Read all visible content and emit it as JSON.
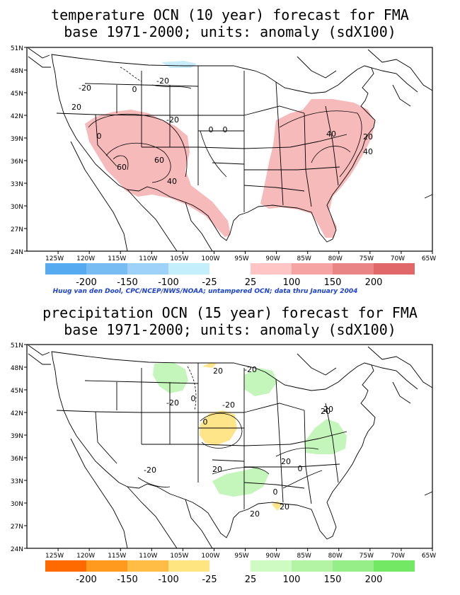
{
  "credit": "Huug van den Dool, CPC/NCEP/NWS/NOAA; untampered OCN; data thru January 2004",
  "colors": {
    "map_line": "#000000",
    "temp_warm": "#f7baba",
    "temp_cold_patch": "#c8ecfa",
    "precip_wet": "#c4f5bb",
    "precip_dry": "#ffe58a"
  },
  "maps": [
    {
      "id": "temperature",
      "title_line1": "temperature OCN (10 year) forecast for FMA",
      "title_line2": "base 1971-2000; units: anomaly (sdX100)",
      "lat_labels": [
        "51N",
        "48N",
        "45N",
        "42N",
        "39N",
        "36N",
        "33N",
        "30N",
        "27N",
        "24N"
      ],
      "lon_labels": [
        "125W",
        "120W",
        "115W",
        "110W",
        "105W",
        "100W",
        "95W",
        "90W",
        "85W",
        "80W",
        "75W",
        "70W",
        "65W"
      ],
      "contour_labels": [
        "-20",
        "0",
        "-20",
        "20",
        "0",
        "-20",
        "0",
        "0",
        "40",
        "20",
        "60",
        "60",
        "40",
        "40"
      ],
      "legend": {
        "colors": [
          "#56aaf0",
          "#78bcf4",
          "#9ed2f8",
          "#c4eefb",
          "#ffffff",
          "#ffc4c4",
          "#f5a3a3",
          "#ea8585",
          "#e06868"
        ],
        "labels": [
          "-200",
          "-150",
          "-100",
          "-25",
          "25",
          "100",
          "150",
          "200"
        ]
      }
    },
    {
      "id": "precipitation",
      "title_line1": "precipitation OCN (15 year) forecast for FMA",
      "title_line2": "base 1971-2000; units: anomaly (sdX100)",
      "lat_labels": [
        "51N",
        "48N",
        "45N",
        "42N",
        "39N",
        "36N",
        "33N",
        "30N",
        "27N",
        "24N"
      ],
      "lon_labels": [
        "125W",
        "120W",
        "115W",
        "110W",
        "105W",
        "100W",
        "95W",
        "90W",
        "85W",
        "80W",
        "75W",
        "70W",
        "65W"
      ],
      "contour_labels": [
        "20",
        "-20",
        "0",
        "-20",
        "0",
        "-20",
        "20",
        "20",
        "0",
        "-20",
        "20",
        "20",
        "0",
        "20",
        "20"
      ],
      "legend": {
        "colors": [
          "#ff6a00",
          "#ff9a1f",
          "#ffbd45",
          "#ffe580",
          "#ffffff",
          "#cdfbc2",
          "#b2f4a4",
          "#95ee88",
          "#72e864"
        ],
        "labels": [
          "-200",
          "-150",
          "-100",
          "-25",
          "25",
          "100",
          "150",
          "200"
        ]
      }
    }
  ]
}
